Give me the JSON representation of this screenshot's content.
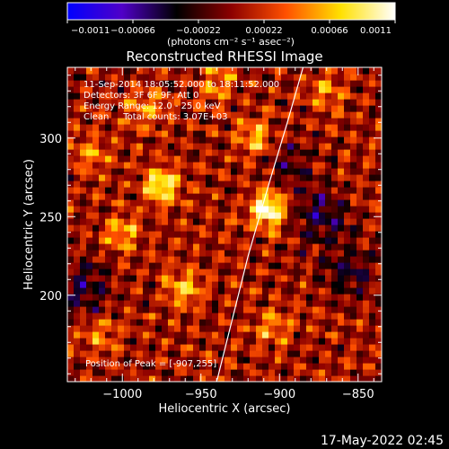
{
  "chart_data": {
    "type": "heatmap",
    "title": "Reconstructed RHESSI Image",
    "xlabel": "Heliocentric X (arcsec)",
    "ylabel": "Heliocentric Y (arcsec)",
    "xlim": [
      -1035,
      -835
    ],
    "ylim": [
      145,
      345
    ],
    "x_ticks": [
      -1000,
      -950,
      -900,
      -850
    ],
    "x_tick_labels": [
      "−1000",
      "−950",
      "−900",
      "−850"
    ],
    "y_ticks": [
      200,
      250,
      300
    ],
    "y_tick_labels": [
      "200",
      "250",
      "300"
    ],
    "colorbar": {
      "min": -0.0011,
      "max": 0.0011,
      "ticks": [
        -0.0011,
        -0.00066,
        -0.00022,
        0.00022,
        0.00066,
        0.0011
      ],
      "tick_labels": [
        "−0.0011",
        "−0.00066",
        "−0.00022",
        "0.00022",
        "0.00066",
        "0.0011"
      ],
      "units_label": "(photons cm⁻² s⁻¹ asec⁻²)",
      "colors": [
        "#0000ff",
        "#5000c8",
        "#000000",
        "#8c0000",
        "#ff5000",
        "#ffe000",
        "#ffffff"
      ]
    },
    "annotations": [
      "11-Sep-2014 18:05:52.000 to 18:11:52.000",
      "Detectors: 3F 6F 9F, Att 0",
      "Energy Range: 12.0 - 25.0 keV",
      "Clean     Total counts: 3.07E+03"
    ],
    "peak_label": "Position of Peak = [-907,255]",
    "peak": {
      "x": -907,
      "y": 255,
      "value": 0.0011
    },
    "hotspots": [
      {
        "x": -907,
        "y": 255,
        "value": 0.0011
      },
      {
        "x": -975,
        "y": 270,
        "value": 0.00085
      },
      {
        "x": -915,
        "y": 300,
        "value": 0.0006
      },
      {
        "x": -960,
        "y": 205,
        "value": 0.0006
      },
      {
        "x": -1000,
        "y": 240,
        "value": 0.00055
      },
      {
        "x": -985,
        "y": 320,
        "value": 0.0005
      },
      {
        "x": -905,
        "y": 180,
        "value": 0.0005
      },
      {
        "x": -940,
        "y": 335,
        "value": 0.00045
      },
      {
        "x": -870,
        "y": 330,
        "value": 0.0004
      },
      {
        "x": -1020,
        "y": 290,
        "value": 0.00045
      },
      {
        "x": -1015,
        "y": 175,
        "value": 0.0004
      }
    ],
    "coldspots": [
      {
        "x": -875,
        "y": 250,
        "value": -0.0005
      },
      {
        "x": -855,
        "y": 215,
        "value": -0.0004
      },
      {
        "x": -1025,
        "y": 205,
        "value": -0.00045
      },
      {
        "x": -895,
        "y": 285,
        "value": -0.0003
      }
    ],
    "limb_curve": [
      [
        -940,
        145
      ],
      [
        -930,
        185
      ],
      [
        -920,
        225
      ],
      [
        -907,
        270
      ],
      [
        -895,
        310
      ],
      [
        -885,
        345
      ]
    ]
  },
  "footer": {
    "timestamp": "17-May-2022 02:45"
  }
}
